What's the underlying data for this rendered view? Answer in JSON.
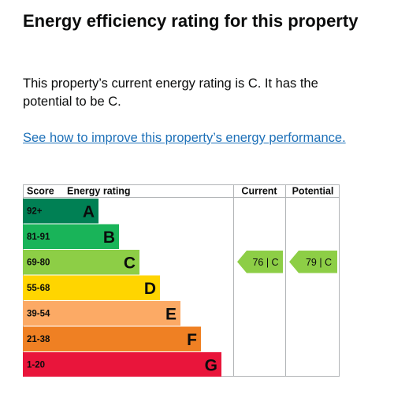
{
  "heading": "Energy efficiency rating for this property",
  "description": "This property’s current energy rating is C. It has the potential to be C.",
  "improve_link": "See how to improve this property’s energy performance.",
  "chart_data": {
    "type": "table",
    "columns": {
      "score": "Score",
      "rating": "Energy rating",
      "current": "Current",
      "potential": "Potential"
    },
    "bands": [
      {
        "score": "92+",
        "letter": "A",
        "color": "#008054"
      },
      {
        "score": "81-91",
        "letter": "B",
        "color": "#19b459"
      },
      {
        "score": "69-80",
        "letter": "C",
        "color": "#8dce46"
      },
      {
        "score": "55-68",
        "letter": "D",
        "color": "#ffd500"
      },
      {
        "score": "39-54",
        "letter": "E",
        "color": "#fcaa65"
      },
      {
        "score": "21-38",
        "letter": "F",
        "color": "#ef8023"
      },
      {
        "score": "1-20",
        "letter": "G",
        "color": "#e9153b"
      }
    ],
    "current": {
      "value": 76,
      "letter": "C",
      "label": "76 | C",
      "color": "#8dce46"
    },
    "potential": {
      "value": 79,
      "letter": "C",
      "label": "79 | C",
      "color": "#8dce46"
    }
  }
}
